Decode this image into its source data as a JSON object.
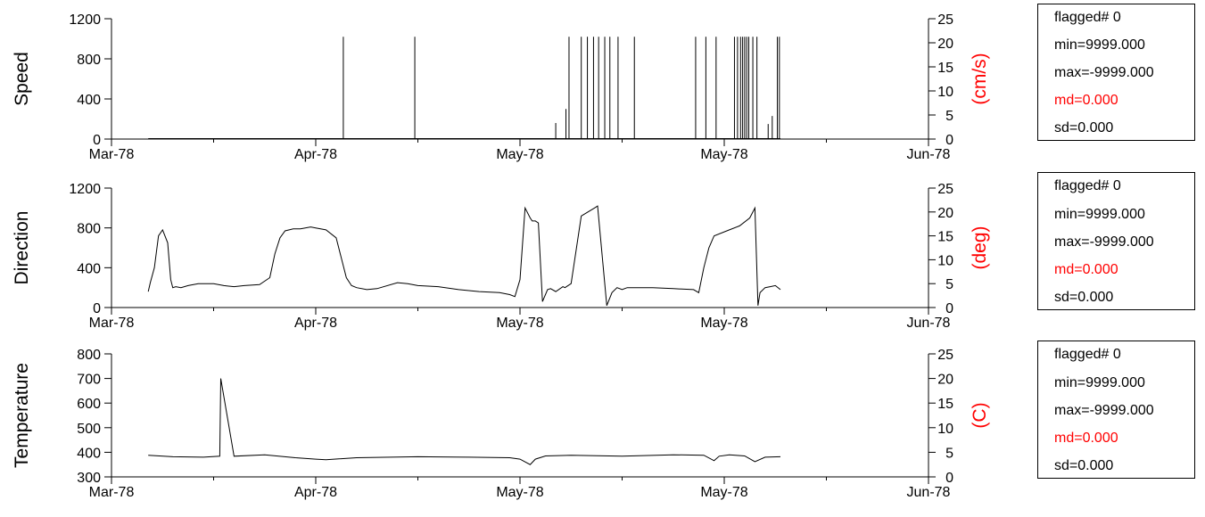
{
  "chart_data": [
    {
      "type": "line",
      "ylabel": "Speed",
      "y2label": "(cm/s)",
      "x_ticks": [
        "Mar-78",
        "Apr-78",
        "May-78",
        "May-78",
        "Jun-78"
      ],
      "ylim": [
        0,
        1200
      ],
      "yticks": [
        0,
        400,
        800,
        1200
      ],
      "y2lim": [
        0,
        25
      ],
      "y2ticks": [
        0,
        5,
        10,
        15,
        20,
        25
      ],
      "series": [
        {
          "baseline": 5,
          "spikes": [
            {
              "x": 2.27,
              "value": 1020
            },
            {
              "x": 2.97,
              "value": 1020
            },
            {
              "x": 4.35,
              "value": 160
            },
            {
              "x": 4.45,
              "value": 300
            },
            {
              "x": 4.48,
              "value": 1020
            },
            {
              "x": 4.6,
              "value": 1020
            },
            {
              "x": 4.66,
              "value": 1020
            },
            {
              "x": 4.72,
              "value": 1020
            },
            {
              "x": 4.77,
              "value": 1020
            },
            {
              "x": 4.83,
              "value": 1020
            },
            {
              "x": 4.88,
              "value": 1020
            },
            {
              "x": 4.96,
              "value": 1020
            },
            {
              "x": 5.12,
              "value": 1020
            },
            {
              "x": 5.72,
              "value": 1020
            },
            {
              "x": 5.82,
              "value": 1020
            },
            {
              "x": 5.92,
              "value": 1020
            },
            {
              "x": 6.1,
              "value": 1020
            },
            {
              "x": 6.13,
              "value": 1020
            },
            {
              "x": 6.16,
              "value": 1020
            },
            {
              "x": 6.18,
              "value": 1020
            },
            {
              "x": 6.2,
              "value": 1020
            },
            {
              "x": 6.22,
              "value": 1020
            },
            {
              "x": 6.24,
              "value": 1020
            },
            {
              "x": 6.28,
              "value": 1020
            },
            {
              "x": 6.32,
              "value": 1020
            },
            {
              "x": 6.43,
              "value": 150
            },
            {
              "x": 6.47,
              "value": 230
            },
            {
              "x": 6.52,
              "value": 1020
            },
            {
              "x": 6.54,
              "value": 1020
            }
          ]
        }
      ]
    },
    {
      "type": "line",
      "ylabel": "Direction",
      "y2label": "(deg)",
      "x_ticks": [
        "Mar-78",
        "Apr-78",
        "May-78",
        "May-78",
        "Jun-78"
      ],
      "ylim": [
        0,
        1200
      ],
      "yticks": [
        0,
        400,
        800,
        1200
      ],
      "y2lim": [
        0,
        25
      ],
      "y2ticks": [
        0,
        5,
        10,
        15,
        20,
        25
      ],
      "series": [
        {
          "x": [
            0.36,
            0.38,
            0.42,
            0.46,
            0.5,
            0.55,
            0.58,
            0.6,
            0.63,
            0.68,
            0.75,
            0.85,
            1.0,
            1.1,
            1.2,
            1.3,
            1.45,
            1.55,
            1.6,
            1.65,
            1.7,
            1.78,
            1.85,
            1.95,
            2.0,
            2.1,
            2.2,
            2.3,
            2.35,
            2.4,
            2.5,
            2.6,
            2.8,
            2.9,
            3.0,
            3.2,
            3.4,
            3.6,
            3.8,
            3.9,
            3.95,
            4.0,
            4.05,
            4.1,
            4.12,
            4.15,
            4.18,
            4.22,
            4.27,
            4.3,
            4.35,
            4.42,
            4.44,
            4.5,
            4.6,
            4.73,
            4.76,
            4.85,
            4.9,
            4.95,
            5.0,
            5.05,
            5.3,
            5.5,
            5.7,
            5.75,
            5.8,
            5.85,
            5.9,
            6.05,
            6.15,
            6.25,
            6.3,
            6.33,
            6.35,
            6.4,
            6.45,
            6.5,
            6.55
          ],
          "y": [
            160,
            250,
            400,
            720,
            780,
            650,
            280,
            200,
            210,
            200,
            220,
            240,
            240,
            220,
            210,
            220,
            230,
            300,
            540,
            700,
            770,
            790,
            790,
            810,
            800,
            780,
            700,
            300,
            220,
            200,
            180,
            190,
            250,
            240,
            220,
            210,
            180,
            160,
            150,
            130,
            110,
            280,
            1000,
            900,
            870,
            870,
            850,
            60,
            180,
            190,
            160,
            210,
            200,
            240,
            920,
            1000,
            1020,
            20,
            150,
            200,
            180,
            200,
            200,
            190,
            180,
            150,
            400,
            600,
            720,
            780,
            820,
            900,
            1000,
            20,
            150,
            200,
            210,
            220,
            180
          ]
        }
      ]
    },
    {
      "type": "line",
      "ylabel": "Temperature",
      "y2label": "(C)",
      "x_ticks": [
        "Mar-78",
        "Apr-78",
        "May-78",
        "May-78",
        "Jun-78"
      ],
      "ylim": [
        300,
        800
      ],
      "yticks": [
        300,
        400,
        500,
        600,
        700,
        800
      ],
      "y2lim": [
        0,
        25
      ],
      "y2ticks": [
        0,
        5,
        10,
        15,
        20,
        25
      ],
      "series": [
        {
          "x": [
            0.36,
            0.6,
            0.9,
            1.06,
            1.07,
            1.2,
            1.5,
            1.8,
            2.0,
            2.1,
            2.4,
            3.0,
            3.5,
            3.9,
            4.0,
            4.1,
            4.15,
            4.25,
            4.5,
            5.0,
            5.5,
            5.8,
            5.9,
            5.95,
            6.05,
            6.2,
            6.3,
            6.4,
            6.55
          ],
          "y": [
            388,
            382,
            380,
            384,
            700,
            384,
            390,
            378,
            372,
            370,
            378,
            382,
            380,
            378,
            372,
            350,
            372,
            385,
            388,
            384,
            390,
            388,
            366,
            384,
            390,
            385,
            362,
            380,
            382
          ]
        }
      ]
    }
  ],
  "stats": [
    {
      "flagged": "flagged# 0",
      "min": "min=9999.000",
      "max": "max=-9999.000",
      "md": "md=0.000",
      "sd": "sd=0.000"
    },
    {
      "flagged": "flagged# 0",
      "min": "min=9999.000",
      "max": "max=-9999.000",
      "md": "md=0.000",
      "sd": "sd=0.000"
    },
    {
      "flagged": "flagged# 0",
      "min": "min=9999.000",
      "max": "max=-9999.000",
      "md": "md=0.000",
      "sd": "sd=0.000"
    }
  ],
  "colors": {
    "line": "#000000",
    "axis": "#000000",
    "accent": "#ff0000"
  }
}
